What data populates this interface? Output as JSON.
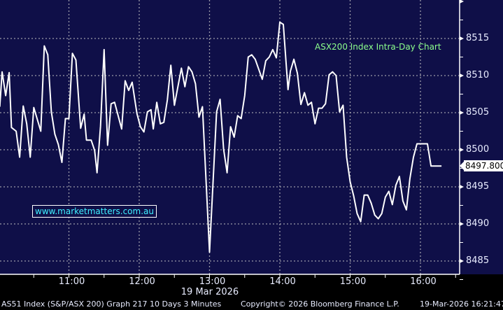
{
  "chart_data": {
    "type": "line",
    "title": "ASX200 Index Intra-Day Chart",
    "xlabel": "19 Mar 2026",
    "ylabel": "",
    "x_ticks": [
      "11:00",
      "12:00",
      "13:00",
      "14:00",
      "15:00",
      "16:00"
    ],
    "y_ticks": [
      8485,
      8490,
      8495,
      8500,
      8505,
      8510,
      8515
    ],
    "ylim": [
      8482.5,
      8520
    ],
    "xlim": [
      "10:00",
      "16:33"
    ],
    "grid": true,
    "line_color": "#ffffff",
    "background_color": "#0f0f48",
    "last_price": "8497.800",
    "points": [
      [
        "10:01",
        8505.8
      ],
      [
        "10:03",
        8510.5
      ],
      [
        "10:06",
        8507.3
      ],
      [
        "10:09",
        8510.4
      ],
      [
        "10:11",
        8503.0
      ],
      [
        "10:15",
        8502.5
      ],
      [
        "10:18",
        8499.0
      ],
      [
        "10:21",
        8505.9
      ],
      [
        "10:24",
        8503.5
      ],
      [
        "10:27",
        8499.0
      ],
      [
        "10:30",
        8505.7
      ],
      [
        "10:36",
        8502.5
      ],
      [
        "10:39",
        8514.0
      ],
      [
        "10:42",
        8512.8
      ],
      [
        "10:45",
        8505.1
      ],
      [
        "10:48",
        8502.1
      ],
      [
        "10:51",
        8500.7
      ],
      [
        "10:54",
        8498.3
      ],
      [
        "10:57",
        8504.2
      ],
      [
        "11:00",
        8504.2
      ],
      [
        "11:03",
        8513.0
      ],
      [
        "11:06",
        8512.1
      ],
      [
        "11:10",
        8502.9
      ],
      [
        "11:13",
        8504.8
      ],
      [
        "11:15",
        8501.3
      ],
      [
        "11:19",
        8501.3
      ],
      [
        "11:22",
        8499.9
      ],
      [
        "11:24",
        8496.9
      ],
      [
        "11:27",
        8503.2
      ],
      [
        "11:30",
        8513.5
      ],
      [
        "11:33",
        8500.6
      ],
      [
        "11:36",
        8506.2
      ],
      [
        "11:39",
        8506.4
      ],
      [
        "11:45",
        8502.8
      ],
      [
        "11:48",
        8509.3
      ],
      [
        "11:51",
        8508.0
      ],
      [
        "11:54",
        8509.1
      ],
      [
        "11:58",
        8504.9
      ],
      [
        "12:01",
        8503.1
      ],
      [
        "12:04",
        8502.4
      ],
      [
        "12:07",
        8505.1
      ],
      [
        "12:10",
        8505.4
      ],
      [
        "12:12",
        8502.8
      ],
      [
        "12:15",
        8506.4
      ],
      [
        "12:18",
        8503.5
      ],
      [
        "12:21",
        8503.7
      ],
      [
        "12:24",
        8506.7
      ],
      [
        "12:27",
        8511.4
      ],
      [
        "12:30",
        8506.0
      ],
      [
        "12:36",
        8511.0
      ],
      [
        "12:39",
        8508.5
      ],
      [
        "12:42",
        8511.2
      ],
      [
        "12:45",
        8510.5
      ],
      [
        "12:48",
        8508.9
      ],
      [
        "12:51",
        8504.4
      ],
      [
        "12:54",
        8505.8
      ],
      [
        "13:00",
        8486.2
      ],
      [
        "13:06",
        8505.1
      ],
      [
        "13:09",
        8506.8
      ],
      [
        "13:12",
        8500.1
      ],
      [
        "13:15",
        8496.9
      ],
      [
        "13:18",
        8503.1
      ],
      [
        "13:21",
        8501.7
      ],
      [
        "13:24",
        8504.6
      ],
      [
        "13:27",
        8504.2
      ],
      [
        "13:30",
        8507.3
      ],
      [
        "13:33",
        8512.5
      ],
      [
        "13:36",
        8512.8
      ],
      [
        "13:39",
        8512.2
      ],
      [
        "13:45",
        8509.5
      ],
      [
        "13:48",
        8512.0
      ],
      [
        "13:51",
        8512.5
      ],
      [
        "13:54",
        8513.5
      ],
      [
        "13:57",
        8512.4
      ],
      [
        "14:00",
        8517.2
      ],
      [
        "14:03",
        8516.9
      ],
      [
        "14:07",
        8508.1
      ],
      [
        "14:09",
        8510.6
      ],
      [
        "14:12",
        8512.2
      ],
      [
        "14:15",
        8510.3
      ],
      [
        "14:18",
        8506.1
      ],
      [
        "14:21",
        8507.7
      ],
      [
        "14:24",
        8506.0
      ],
      [
        "14:27",
        8506.4
      ],
      [
        "14:30",
        8503.5
      ],
      [
        "14:33",
        8505.6
      ],
      [
        "14:36",
        8505.6
      ],
      [
        "14:39",
        8506.2
      ],
      [
        "14:42",
        8510.1
      ],
      [
        "14:45",
        8510.5
      ],
      [
        "14:48",
        8510.0
      ],
      [
        "14:51",
        8505.1
      ],
      [
        "14:54",
        8506.0
      ],
      [
        "14:57",
        8499.0
      ],
      [
        "15:00",
        8495.7
      ],
      [
        "15:03",
        8493.8
      ],
      [
        "15:06",
        8491.4
      ],
      [
        "15:09",
        8490.3
      ],
      [
        "15:12",
        8493.9
      ],
      [
        "15:15",
        8493.9
      ],
      [
        "15:18",
        8492.8
      ],
      [
        "15:21",
        8491.2
      ],
      [
        "15:24",
        8490.7
      ],
      [
        "15:27",
        8491.4
      ],
      [
        "15:30",
        8493.6
      ],
      [
        "15:33",
        8494.4
      ],
      [
        "15:36",
        8492.6
      ],
      [
        "15:39",
        8495.2
      ],
      [
        "15:42",
        8496.4
      ],
      [
        "15:45",
        8493.1
      ],
      [
        "15:48",
        8491.9
      ],
      [
        "15:51",
        8496.1
      ],
      [
        "15:54",
        8499.0
      ],
      [
        "15:57",
        8500.8
      ],
      [
        "16:06",
        8500.8
      ],
      [
        "16:09",
        8497.8
      ],
      [
        "16:18",
        8497.8
      ]
    ]
  },
  "watermark": "www.marketmatters.com.au",
  "footer": {
    "security": "AS51 Index (S&P/ASX 200) Graph 217 10 Days 3 Minutes",
    "copyright": "Copyright© 2026 Bloomberg Finance L.P.",
    "timestamp": "19-Mar-2026 16:21:47"
  }
}
